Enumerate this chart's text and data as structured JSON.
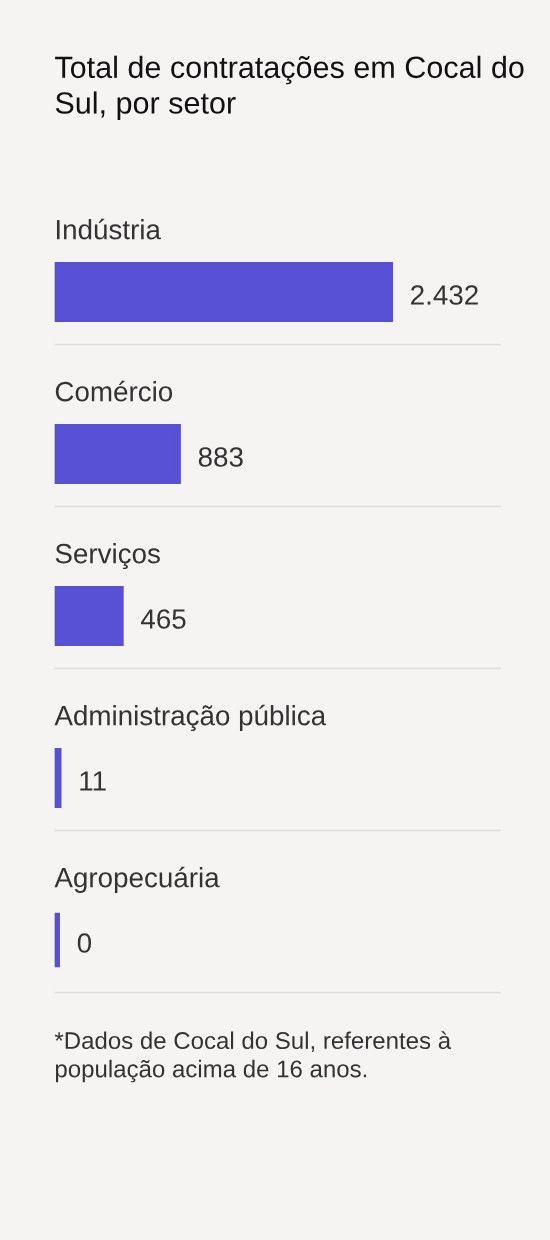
{
  "chart_data": {
    "type": "bar",
    "orientation": "horizontal",
    "title": "Total de contratações em Cocal do Sul, por setor",
    "categories": [
      "Indústria",
      "Comércio",
      "Serviços",
      "Administração pública",
      "Agropecuária"
    ],
    "values": [
      2432,
      883,
      465,
      11,
      0
    ],
    "value_labels": [
      "2.432",
      "883",
      "465",
      "11",
      "0"
    ],
    "color": "#5851d6",
    "grid": "y",
    "annotations": [
      "*Dados de Cocal do Sul, referentes à população acima de 16 anos."
    ]
  }
}
